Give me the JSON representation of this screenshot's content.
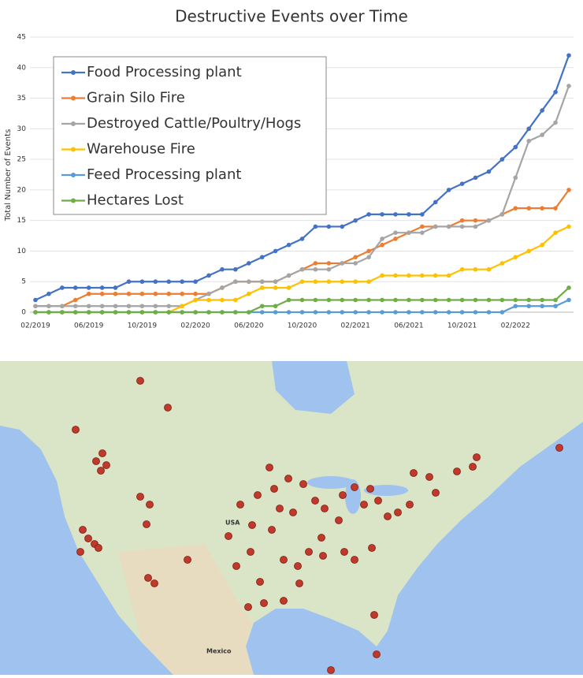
{
  "chart_data": {
    "type": "line",
    "title": "Destructive Events over Time",
    "y_label": "Total Number of Events",
    "x": [
      "02/2019",
      "03/2019",
      "04/2019",
      "05/2019",
      "06/2019",
      "07/2019",
      "08/2019",
      "09/2019",
      "10/2019",
      "11/2019",
      "12/2019",
      "01/2020",
      "02/2020",
      "03/2020",
      "04/2020",
      "05/2020",
      "06/2020",
      "07/2020",
      "08/2020",
      "09/2020",
      "10/2020",
      "11/2020",
      "12/2020",
      "01/2021",
      "02/2021",
      "03/2021",
      "04/2021",
      "05/2021",
      "06/2021",
      "07/2021",
      "08/2021",
      "09/2021",
      "10/2021",
      "11/2021",
      "12/2021",
      "01/2022",
      "02/2022",
      "03/2022",
      "04/2022",
      "05/2022",
      "06/2022"
    ],
    "series": [
      {
        "name": "Food Processing plant",
        "color": "#4472c4",
        "values": [
          2,
          3,
          4,
          4,
          4,
          4,
          4,
          5,
          5,
          5,
          5,
          5,
          5,
          6,
          7,
          7,
          8,
          9,
          10,
          11,
          12,
          14,
          14,
          14,
          15,
          16,
          16,
          16,
          16,
          16,
          18,
          20,
          21,
          22,
          23,
          25,
          27,
          30,
          33,
          36,
          42
        ]
      },
      {
        "name": "Grain Silo Fire",
        "color": "#ed7d31",
        "values": [
          1,
          1,
          1,
          2,
          3,
          3,
          3,
          3,
          3,
          3,
          3,
          3,
          3,
          3,
          4,
          5,
          5,
          5,
          5,
          6,
          7,
          8,
          8,
          8,
          9,
          10,
          11,
          12,
          13,
          14,
          14,
          14,
          15,
          15,
          15,
          16,
          17,
          17,
          17,
          17,
          20
        ]
      },
      {
        "name": "Destroyed Cattle/Poultry/Hogs",
        "color": "#a5a5a5",
        "values": [
          1,
          1,
          1,
          1,
          1,
          1,
          1,
          1,
          1,
          1,
          1,
          1,
          2,
          3,
          4,
          5,
          5,
          5,
          5,
          6,
          7,
          7,
          7,
          8,
          8,
          9,
          12,
          13,
          13,
          13,
          14,
          14,
          14,
          14,
          15,
          16,
          22,
          28,
          29,
          31,
          37
        ]
      },
      {
        "name": "Warehouse Fire",
        "color": "#ffc000",
        "values": [
          0,
          0,
          0,
          0,
          0,
          0,
          0,
          0,
          0,
          0,
          0,
          1,
          2,
          2,
          2,
          2,
          3,
          4,
          4,
          4,
          5,
          5,
          5,
          5,
          5,
          5,
          6,
          6,
          6,
          6,
          6,
          6,
          7,
          7,
          7,
          8,
          9,
          10,
          11,
          13,
          14
        ]
      },
      {
        "name": "Feed Processing plant",
        "color": "#5b9bd5",
        "values": [
          0,
          0,
          0,
          0,
          0,
          0,
          0,
          0,
          0,
          0,
          0,
          0,
          0,
          0,
          0,
          0,
          0,
          0,
          0,
          0,
          0,
          0,
          0,
          0,
          0,
          0,
          0,
          0,
          0,
          0,
          0,
          0,
          0,
          0,
          0,
          0,
          1,
          1,
          1,
          1,
          2
        ]
      },
      {
        "name": "Hectares Lost",
        "color": "#70ad47",
        "values": [
          0,
          0,
          0,
          0,
          0,
          0,
          0,
          0,
          0,
          0,
          0,
          0,
          0,
          0,
          0,
          0,
          0,
          1,
          1,
          2,
          2,
          2,
          2,
          2,
          2,
          2,
          2,
          2,
          2,
          2,
          2,
          2,
          2,
          2,
          2,
          2,
          2,
          2,
          2,
          2,
          4
        ]
      }
    ],
    "xlim": [
      "02/2019",
      "06/2022"
    ],
    "xticks": [
      "02/2019",
      "06/2019",
      "10/2019",
      "02/2020",
      "06/2020",
      "10/2020",
      "02/2021",
      "06/2021",
      "10/2021",
      "02/2022"
    ],
    "ylim": [
      0,
      45
    ],
    "yticks": [
      0,
      5,
      10,
      15,
      20,
      25,
      30,
      35,
      40,
      45
    ],
    "grid": true,
    "legend": "upper left"
  },
  "map": {
    "labels": [
      "USA",
      "Mexico"
    ]
  }
}
